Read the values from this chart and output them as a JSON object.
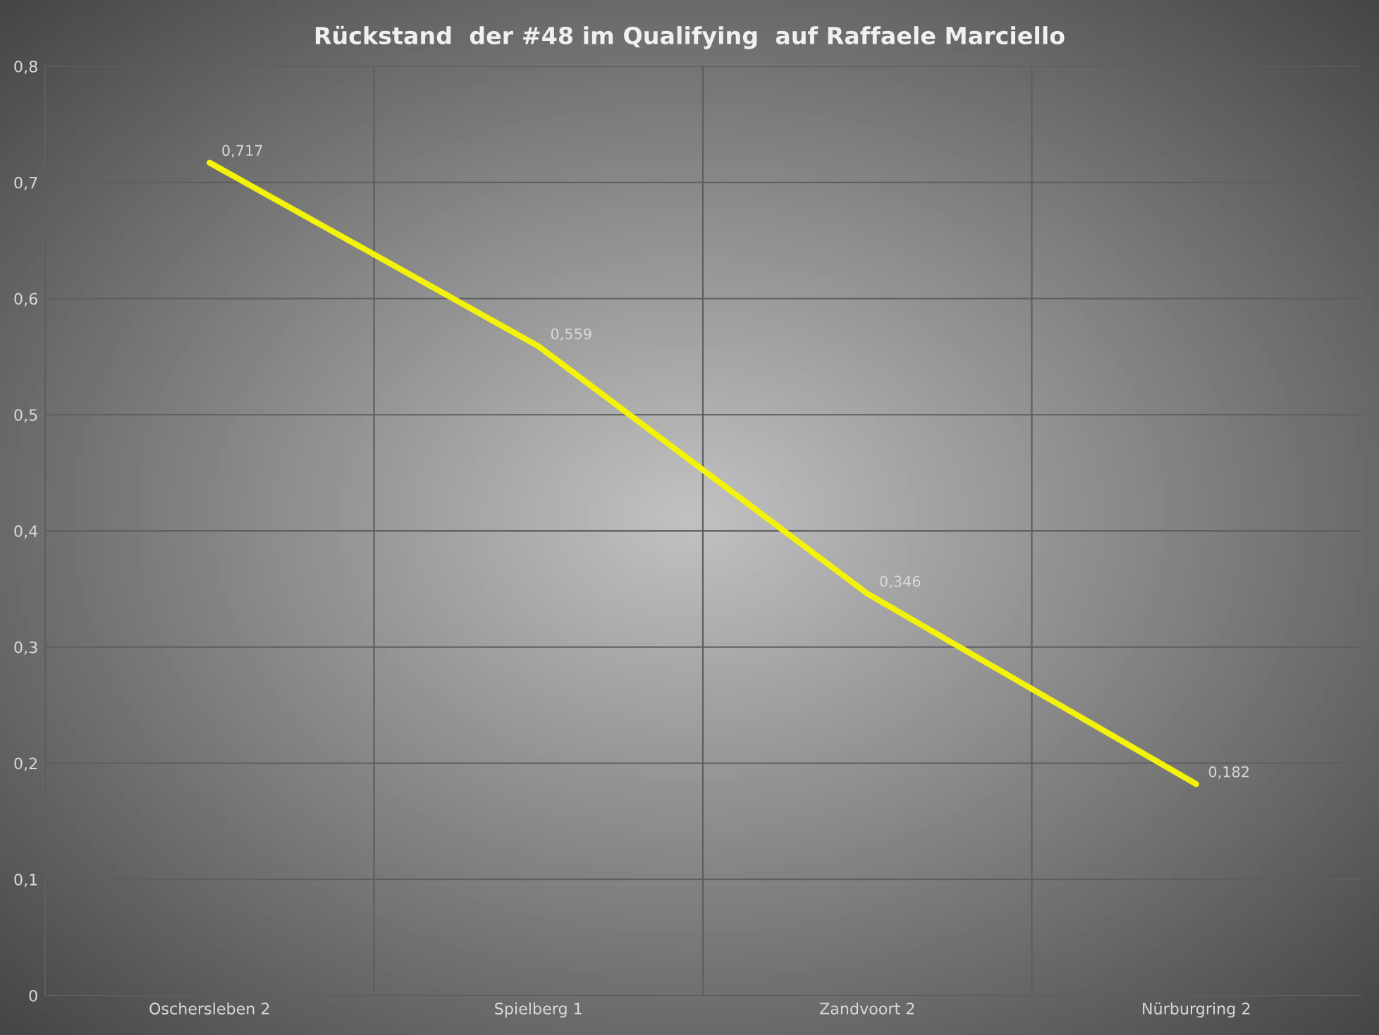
{
  "chart_data": {
    "type": "line",
    "title": "Rückstand  der #48 im Qualifying  auf Raffaele Marciello",
    "categories": [
      "Oschersleben 2",
      "Spielberg 1",
      "Zandvoort 2",
      "Nürburgring 2"
    ],
    "series": [
      {
        "color": "#f2f20a",
        "values": [
          0.717,
          0.559,
          0.346,
          0.182
        ],
        "value_labels": [
          "0,717",
          "0,559",
          "0,346",
          "0,182"
        ]
      }
    ],
    "ylim": [
      0,
      0.8
    ],
    "yticks": [
      0,
      {
        "value": 0.1,
        "label": "0,1"
      },
      {
        "value": 0.2,
        "label": "0,2"
      },
      {
        "value": 0.3,
        "label": "0,3"
      },
      {
        "value": 0.4,
        "label": "0,4"
      },
      {
        "value": 0.5,
        "label": "0,5"
      },
      {
        "value": 0.6,
        "label": "0,6"
      },
      {
        "value": 0.7,
        "label": "0,7"
      },
      {
        "value": 0.8,
        "label": "0,8"
      }
    ],
    "grid": true,
    "marker": "none",
    "line_style": "solid"
  }
}
